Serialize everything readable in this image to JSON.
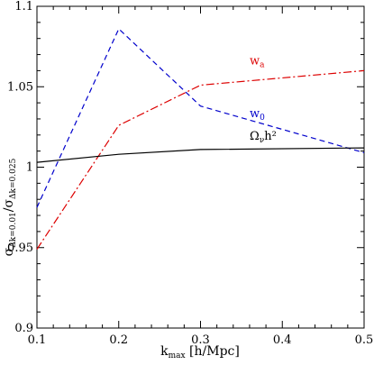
{
  "chart_data": {
    "type": "line",
    "x": [
      0.1,
      0.2,
      0.3,
      0.5
    ],
    "xlim": [
      0.1,
      0.5
    ],
    "ylim": [
      0.9,
      1.1
    ],
    "xticks": [
      "0.1",
      "0.2",
      "0.3",
      "0.4",
      "0.5"
    ],
    "yticks": [
      "0.9",
      "0.95",
      "1",
      "1.05",
      "1.1"
    ],
    "xlabel": {
      "main": "k",
      "sub": "max",
      "rest": " [h/Mpc]"
    },
    "ylabel": {
      "sigma1": "σ",
      "sub1": "Δk=0.01",
      "slash": "/",
      "sigma2": "σ",
      "sub2": "Δk=0.025"
    },
    "grid": false,
    "series": [
      {
        "key": "w0",
        "label": {
          "main": "w",
          "sub": "0",
          "sup": ""
        },
        "color": "#0000cc",
        "dash": "6,4",
        "values": [
          0.975,
          1.086,
          1.038,
          1.009
        ]
      },
      {
        "key": "wa",
        "label": {
          "main": "w",
          "sub": "a",
          "sup": ""
        },
        "color": "#dd0000",
        "dash": "9,3,2,3",
        "values": [
          0.949,
          1.026,
          1.051,
          1.06
        ]
      },
      {
        "key": "omega",
        "label": {
          "main": "Ω",
          "sub": "ν",
          "sup": "h²"
        },
        "color": "#000000",
        "dash": "",
        "values": [
          1.003,
          1.008,
          1.011,
          1.012
        ]
      }
    ]
  }
}
